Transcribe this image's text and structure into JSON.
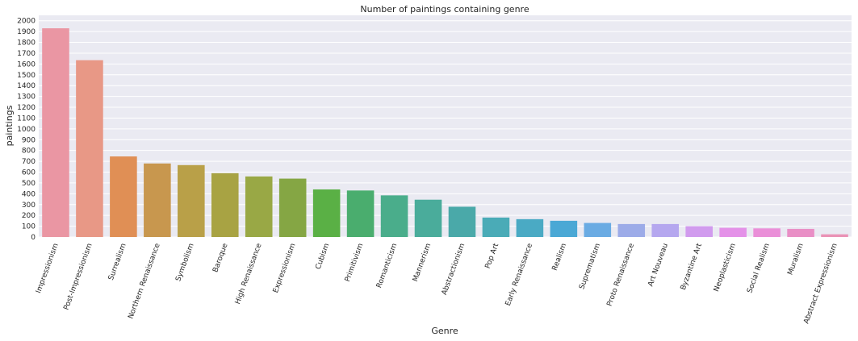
{
  "chart_data": {
    "type": "bar",
    "title": "Number of paintings containing genre",
    "xlabel": "Genre",
    "ylabel": "paintings",
    "ylim": [
      0,
      2050
    ],
    "yticks": [
      0,
      100,
      200,
      300,
      400,
      500,
      600,
      700,
      800,
      900,
      1000,
      1100,
      1200,
      1300,
      1400,
      1500,
      1600,
      1700,
      1800,
      1900,
      2000
    ],
    "grid": true,
    "legend": "none",
    "categories": [
      "Impressionism",
      "Post-Impressionism",
      "Surrealism",
      "Northern Renaissance",
      "Symbolism",
      "Baroque",
      "High Renaissance",
      "Expressionism",
      "Cubism",
      "Primitivism",
      "Romanticism",
      "Mannerism",
      "Abstractionism",
      "Pop Art",
      "Early Renaissance",
      "Realism",
      "Suprematism",
      "Proto Renaissance",
      "Art Nouveau",
      "Byzantine Art",
      "Neoplasticism",
      "Social Realism",
      "Muralism",
      "Abstract Expressionism"
    ],
    "values": [
      1930,
      1635,
      745,
      680,
      665,
      590,
      560,
      540,
      440,
      430,
      385,
      345,
      280,
      180,
      165,
      150,
      130,
      120,
      120,
      100,
      85,
      80,
      75,
      25
    ],
    "colors": [
      "#ea96a3",
      "#e89886",
      "#e08f55",
      "#c8974e",
      "#b9a048",
      "#a8a343",
      "#99a845",
      "#85a644",
      "#5ab045",
      "#4aad6e",
      "#4aad8b",
      "#4aac9b",
      "#4aa9a9",
      "#4aabb7",
      "#4aaac4",
      "#4aa8d5",
      "#6aabe3",
      "#9cabe8",
      "#b5a7ef",
      "#d19bee",
      "#e491e8",
      "#ea8fd8",
      "#e98fc6",
      "#ea92b6"
    ],
    "background_color": "#eaeaf2",
    "grid_color": "#ffffff"
  }
}
